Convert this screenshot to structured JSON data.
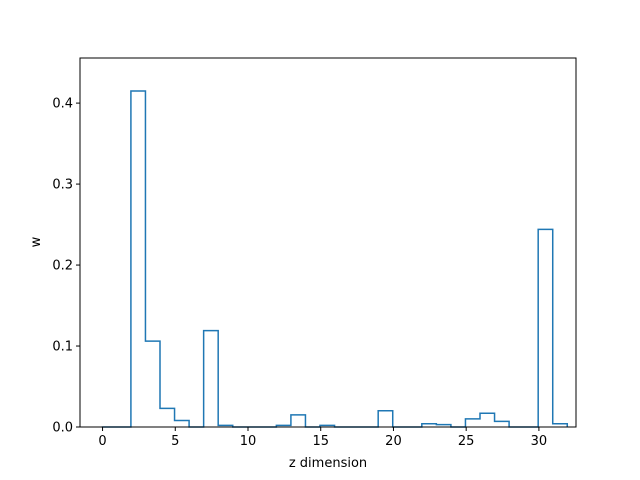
{
  "chart_data": {
    "type": "step",
    "style": "histogram-step-outline",
    "xlabel": "z dimension",
    "ylabel": "w",
    "xlim": [
      -1.55,
      32.55
    ],
    "ylim": [
      0,
      0.4557
    ],
    "x_ticks": [
      0,
      5,
      10,
      15,
      20,
      25,
      30
    ],
    "y_ticks": [
      0.0,
      0.1,
      0.2,
      0.3,
      0.4
    ],
    "x_tick_labels": [
      "0",
      "5",
      "10",
      "15",
      "20",
      "25",
      "30"
    ],
    "y_tick_labels": [
      "0.0",
      "0.1",
      "0.2",
      "0.3",
      "0.4"
    ],
    "grid": false,
    "series": [
      {
        "bin_start": -0.05,
        "bin_width": 1.0,
        "values": [
          0.0,
          0.0,
          0.415,
          0.106,
          0.023,
          0.008,
          0.0,
          0.119,
          0.002,
          0.0,
          0.0,
          0.0,
          0.002,
          0.015,
          0.0,
          0.002,
          0.0,
          0.0,
          0.0,
          0.02,
          0.0,
          0.0,
          0.004,
          0.003,
          0.0,
          0.01,
          0.017,
          0.007,
          0.0,
          0.0,
          0.244,
          0.004
        ],
        "color": "#1f77b4"
      }
    ]
  }
}
